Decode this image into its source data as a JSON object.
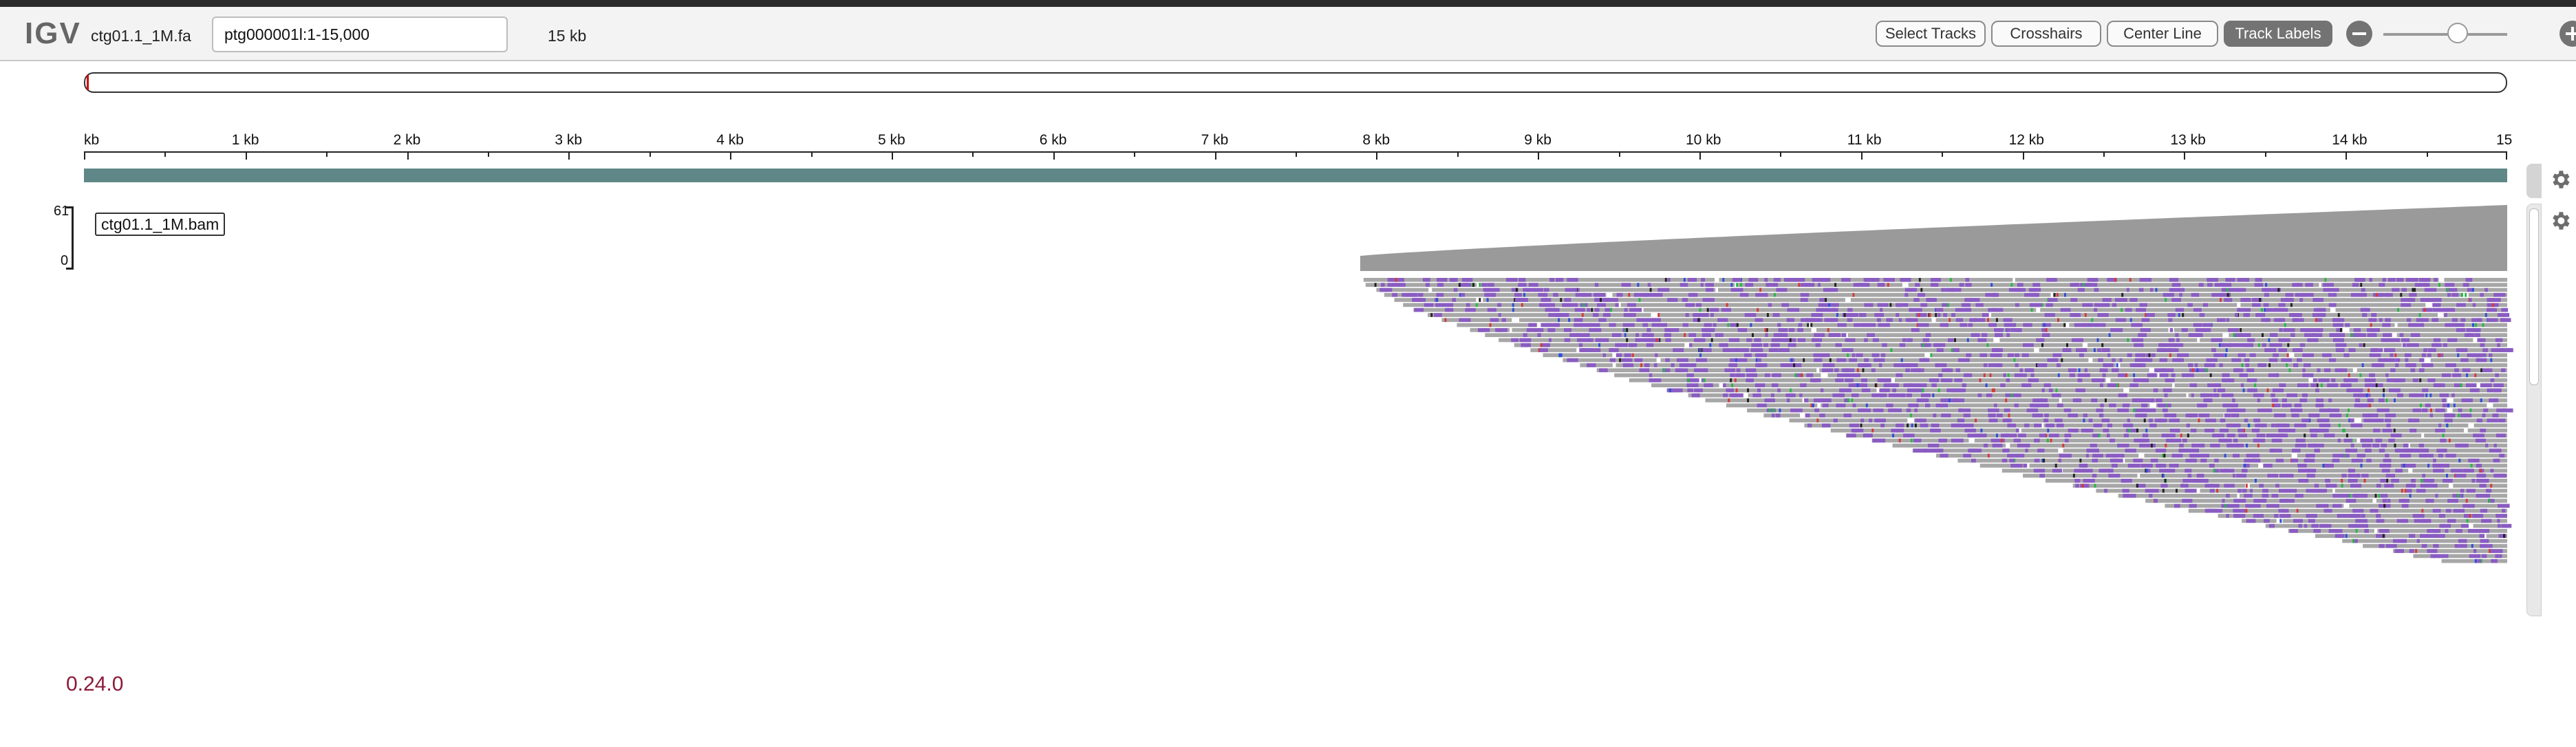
{
  "app": {
    "logo": "IGV",
    "genome_label": "ctg01.1_1M.fa",
    "version": "0.24.0"
  },
  "navbar": {
    "locus_value": "ptg000001l:1-15,000",
    "window_size": "15 kb",
    "buttons": {
      "select_tracks": "Select Tracks",
      "crosshairs": "Crosshairs",
      "center_line": "Center Line",
      "track_labels": "Track Labels"
    },
    "track_labels_active": true,
    "zoom_icons": [
      "minus-icon",
      "plus-icon"
    ],
    "zoom_level_fraction": 0.6
  },
  "ruler": {
    "unit": "kb",
    "start_label": "kb",
    "labels": [
      "1 kb",
      "2 kb",
      "3 kb",
      "4 kb",
      "5 kb",
      "6 kb",
      "7 kb",
      "8 kb",
      "9 kb",
      "10 kb",
      "11 kb",
      "12 kb",
      "13 kb",
      "14 kb",
      "15"
    ]
  },
  "tracks": {
    "sequence_color": "#5f8787",
    "alignment": {
      "name": "ctg01.1_1M.bam",
      "coverage_max": "61",
      "coverage_min": "0",
      "reads_start_kb": 7.9,
      "region_end_kb": 15.0,
      "read_color": "#a7a7a7",
      "mismatch_color": "#8a5cc2",
      "coverage_color": "#9a9a9a"
    }
  },
  "colors": {
    "version": "#8b1a3a",
    "button_active_bg": "#737373"
  }
}
